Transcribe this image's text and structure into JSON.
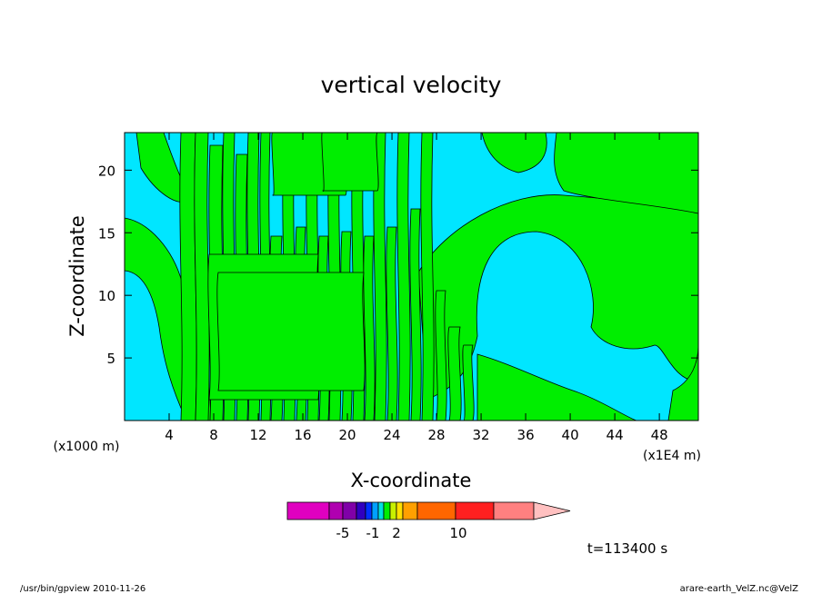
{
  "chart_data": {
    "type": "heatmap",
    "title": "vertical velocity",
    "xlabel": "X-coordinate",
    "ylabel": "Z-coordinate",
    "x_unit_note": "(x1E4 m)",
    "y_unit_note": "(x1000 m)",
    "xlim": [
      0,
      51.5
    ],
    "ylim": [
      0,
      23
    ],
    "x_ticks": [
      4,
      8,
      12,
      16,
      20,
      24,
      28,
      32,
      36,
      40,
      44,
      48
    ],
    "y_ticks": [
      5,
      10,
      15,
      20
    ],
    "x_tick_labels": [
      "4",
      "8",
      "12",
      "16",
      "20",
      "24",
      "28",
      "32",
      "36",
      "40",
      "44",
      "48"
    ],
    "y_tick_labels": [
      "5",
      "10",
      "15",
      "20"
    ],
    "field_colors": {
      "negative": "#00e6ff",
      "positive": "#00ee00"
    },
    "colorbar": {
      "levels_colors": [
        "#e000c0",
        "#b000b0",
        "#8000a8",
        "#3000c0",
        "#0030ff",
        "#00a0ff",
        "#00e0e0",
        "#00ee00",
        "#c8f000",
        "#ffe000",
        "#ffa000",
        "#ff6600",
        "#ff2020",
        "#ff8080",
        "#ffc0c0"
      ],
      "tick_labels": [
        "-5",
        "-1",
        "2",
        "10"
      ],
      "extend": "right"
    },
    "time_label": "t=113400 s",
    "footer_left": "/usr/bin/gpview  2010-11-26",
    "footer_right": "arare-earth_VelZ.nc@VelZ"
  }
}
